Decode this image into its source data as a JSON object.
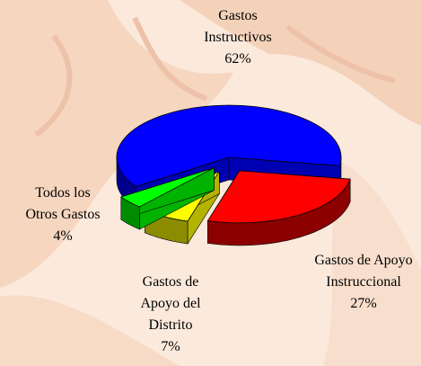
{
  "chart_data": {
    "type": "pie3d",
    "categories": [
      "Gastos Instructivos",
      "Gastos de Apoyo Instruccional",
      "Gastos de Apoyo del Distrito",
      "Todos los Otros Gastos"
    ],
    "values": [
      62,
      27,
      7,
      4
    ],
    "value_labels": [
      "62%",
      "27%",
      "7%",
      "4%"
    ],
    "colors": [
      "#0000ff",
      "#ff0000",
      "#ffff00",
      "#00ff00"
    ]
  }
}
